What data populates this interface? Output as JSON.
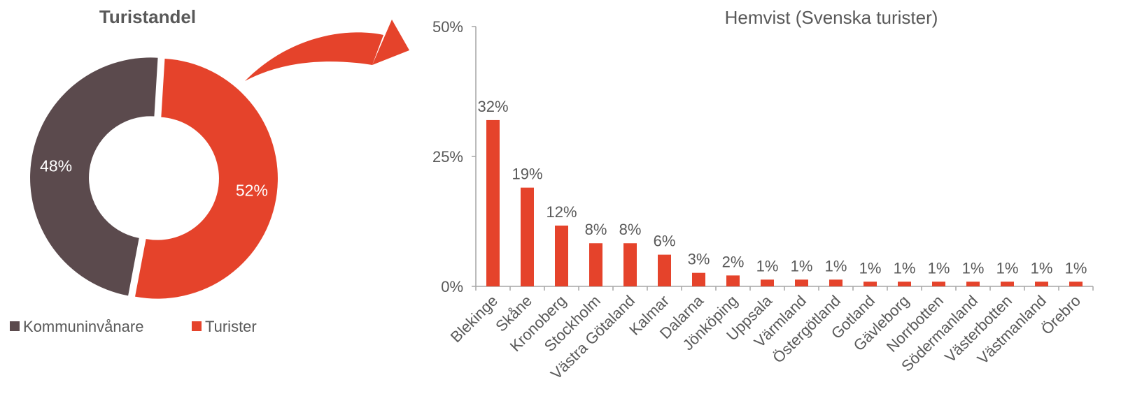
{
  "colors": {
    "turister": "#E5432B",
    "kommuninvanare": "#5B4A4D",
    "axis": "#A6A6A6",
    "text": "#595959"
  },
  "chart_data": [
    {
      "type": "pie",
      "variant": "donut",
      "title": "Turistandel",
      "legend_position": "bottom",
      "slices": [
        {
          "name": "Kommuninvånare",
          "value": 48,
          "label": "48%",
          "color": "#5B4A4D"
        },
        {
          "name": "Turister",
          "value": 52,
          "label": "52%",
          "color": "#E5432B"
        }
      ]
    },
    {
      "type": "bar",
      "title": "Hemvist (Svenska turister)",
      "xlabel": "",
      "ylabel": "",
      "ylim": [
        0,
        50
      ],
      "yticks": [
        "0%",
        "25%",
        "50%"
      ],
      "grid": false,
      "categories": [
        "Blekinge",
        "Skåne",
        "Kronoberg",
        "Stockholm",
        "Västra Götaland",
        "Kalmar",
        "Dalarna",
        "Jönköping",
        "Uppsala",
        "Värmland",
        "Östergötland",
        "Gotland",
        "Gävleborg",
        "Norrbotten",
        "Södermanland",
        "Västerbotten",
        "Västmanland",
        "Örebro"
      ],
      "values": [
        32,
        19,
        11.7,
        8.3,
        8.3,
        6.1,
        2.6,
        2.1,
        1.3,
        1.3,
        1.3,
        0.9,
        0.9,
        0.9,
        0.9,
        0.9,
        0.9,
        0.9
      ],
      "data_labels": [
        "32%",
        "19%",
        "12%",
        "8%",
        "8%",
        "6%",
        "3%",
        "2%",
        "1%",
        "1%",
        "1%",
        "1%",
        "1%",
        "1%",
        "1%",
        "1%",
        "1%",
        "1%"
      ],
      "color": "#E5432B"
    }
  ]
}
